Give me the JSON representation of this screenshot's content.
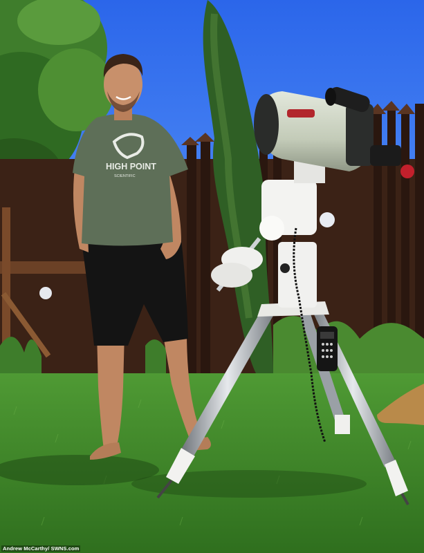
{
  "photo": {
    "credit": "Andrew McCarthy/ SWNS.com",
    "shirt_logo_line1": "HIGH POINT",
    "shirt_logo_line2": "SCIENTIFIC"
  },
  "colors": {
    "sky": "#2c6bef",
    "grass": "#3f8a2a",
    "fence": "#3b2216",
    "shirt": "#5e6f58",
    "shorts": "#141414",
    "telescope_tube": "#cfd6c6",
    "mount": "#f1f1ef"
  }
}
